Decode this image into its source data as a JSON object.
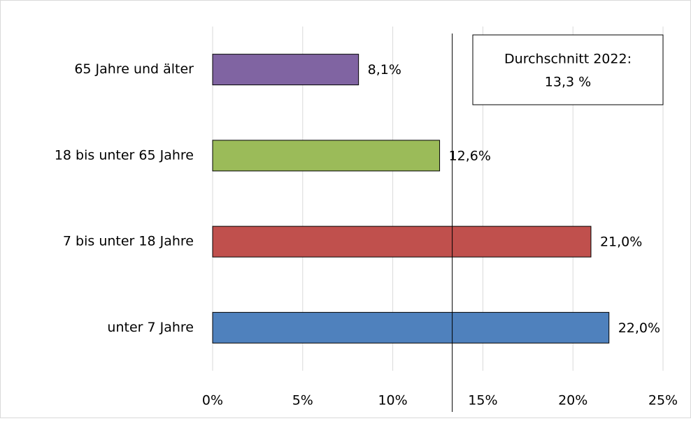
{
  "chart_data": {
    "type": "barh",
    "categories": [
      "65 Jahre und älter",
      "18 bis unter 65 Jahre",
      "7 bis unter 18 Jahre",
      "unter 7 Jahre"
    ],
    "values": [
      8.1,
      12.6,
      21.0,
      22.0
    ],
    "value_labels": [
      "8,1%",
      "12,6%",
      "21,0%",
      "22,0%"
    ],
    "colors": [
      "#8064a2",
      "#9bbb59",
      "#c0504d",
      "#4f81bd"
    ],
    "xlim": [
      0,
      25
    ],
    "xticks": [
      {
        "value": 0,
        "label": "0%"
      },
      {
        "value": 5,
        "label": "5%"
      },
      {
        "value": 10,
        "label": "10%"
      },
      {
        "value": 15,
        "label": "15%"
      },
      {
        "value": 20,
        "label": "20%"
      },
      {
        "value": 25,
        "label": "25%"
      }
    ],
    "grid": true,
    "reference_value": 13.3,
    "annotation": [
      "Durchschnitt 2022:",
      "13,3 %"
    ]
  }
}
